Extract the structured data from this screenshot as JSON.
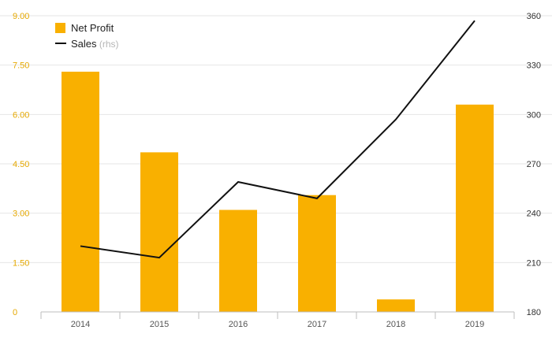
{
  "chart_data": {
    "type": "bar",
    "categories": [
      "2014",
      "2015",
      "2016",
      "2017",
      "2018",
      "2019"
    ],
    "series": [
      {
        "name": "Net Profit",
        "type": "bar",
        "axis": "left",
        "color": "#f9b000",
        "values": [
          7.3,
          4.85,
          3.1,
          3.55,
          0.38,
          6.3
        ]
      },
      {
        "name": "Sales",
        "tag": "(rhs)",
        "type": "line",
        "axis": "right",
        "color": "#111111",
        "values": [
          220,
          213,
          259,
          249,
          297,
          357
        ]
      }
    ],
    "left_axis": {
      "ylim": [
        0,
        9
      ],
      "ticks": [
        "0",
        "1.50",
        "3.00",
        "4.50",
        "6.00",
        "7.50",
        "9.00"
      ],
      "tick_values": [
        0,
        1.5,
        3,
        4.5,
        6,
        7.5,
        9
      ],
      "tick_color": "#e5a800"
    },
    "right_axis": {
      "ylim": [
        180,
        360
      ],
      "ticks": [
        "180",
        "210",
        "240",
        "270",
        "300",
        "330",
        "360"
      ],
      "tick_values": [
        180,
        210,
        240,
        270,
        300,
        330,
        360
      ]
    },
    "grid": true,
    "legend_position": "top-left"
  }
}
